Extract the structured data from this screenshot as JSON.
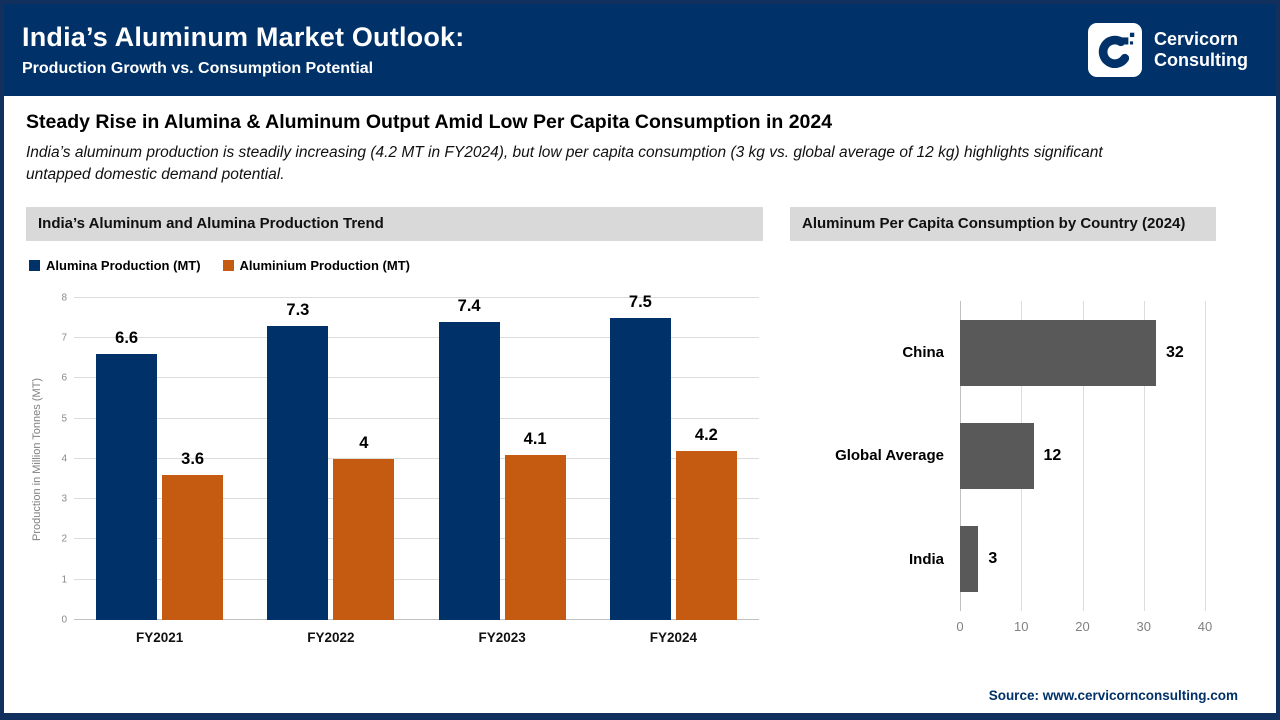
{
  "header": {
    "title": "India’s Aluminum Market Outlook:",
    "subtitle": "Production Growth vs. Consumption Potential",
    "logo": {
      "line1": "Cervicorn",
      "line2": "Consulting"
    }
  },
  "intro": {
    "headline": "Steady Rise in Alumina & Aluminum Output Amid Low Per Capita Consumption in 2024",
    "description_lines": [
      "India’s aluminum production is steadily increasing (4.2 MT in FY2024), but low per capita consumption (3 kg vs. global average of 12 kg) highlights significant",
      "untapped domestic demand potential."
    ]
  },
  "colors": {
    "navy": "#003168",
    "orange": "#c55a11",
    "dark_gray": "#595959",
    "panel_gray": "#d9d9d9"
  },
  "left_chart": {
    "panel_title": "India’s Aluminum and Alumina Production Trend"
  },
  "right_chart": {
    "panel_title": "Aluminum Per Capita Consumption by Country (2024)"
  },
  "chart_data": [
    {
      "type": "bar",
      "title": "India’s Aluminum and Alumina Production Trend",
      "categories": [
        "FY2021",
        "FY2022",
        "FY2023",
        "FY2024"
      ],
      "series": [
        {
          "name": "Alumina Production (MT)",
          "color": "#003168",
          "values": [
            6.6,
            7.3,
            7.4,
            7.5
          ],
          "labels": [
            "6.6",
            "7.3",
            "7.4",
            "7.5"
          ]
        },
        {
          "name": "Aluminium Production (MT)",
          "color": "#c55a11",
          "values": [
            3.6,
            4,
            4.1,
            4.2
          ],
          "labels": [
            "3.6",
            "4",
            "4.1",
            "4.2"
          ]
        }
      ],
      "xlabel": "",
      "ylabel": "Production in Million Tonnes (MT)",
      "ylim": [
        0,
        8
      ],
      "yticks": [
        0,
        1,
        2,
        3,
        4,
        5,
        6,
        7,
        8
      ],
      "grid": true,
      "legend_position": "top-left"
    },
    {
      "type": "bar-horizontal",
      "title": "Aluminum Per Capita Consumption by Country (2024)",
      "categories": [
        "China",
        "Global Average",
        "India"
      ],
      "values": [
        32,
        12,
        3
      ],
      "labels": [
        "32",
        "12",
        "3"
      ],
      "color": "#595959",
      "xlim": [
        0,
        40
      ],
      "xticks": [
        0,
        10,
        20,
        30,
        40
      ],
      "grid": true,
      "legend_position": "none"
    }
  ],
  "footer": {
    "source": "Source: www.cervicornconsulting.com"
  }
}
